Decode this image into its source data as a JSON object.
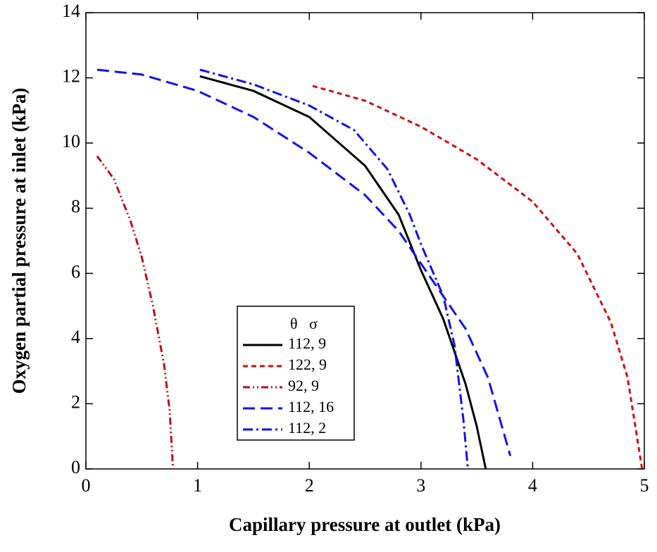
{
  "chart_data": {
    "type": "line",
    "xlabel": "Capillary pressure at outlet (kPa)",
    "ylabel": "Oxygen partial pressure at inlet (kPa)",
    "legend_title": "θ   σ",
    "xlim": [
      0,
      5
    ],
    "xticks": [
      0,
      1,
      2,
      3,
      4,
      5
    ],
    "ylim": [
      0,
      14
    ],
    "yticks": [
      0,
      2,
      4,
      6,
      8,
      10,
      12,
      14
    ],
    "legend": "lower center",
    "series": [
      {
        "name": "112, 9",
        "color": "#000000",
        "style": "solid",
        "x": [
          1.02,
          1.5,
          2.0,
          2.5,
          2.8,
          3.0,
          3.2,
          3.4,
          3.5,
          3.58
        ],
        "values": [
          12.05,
          11.6,
          10.8,
          9.3,
          7.8,
          6.1,
          4.6,
          2.6,
          1.3,
          0
        ]
      },
      {
        "name": "122, 9",
        "color": "#cc1111",
        "style": "dashed",
        "x": [
          2.03,
          2.5,
          3.0,
          3.5,
          4.0,
          4.4,
          4.7,
          4.85,
          4.98
        ],
        "values": [
          11.75,
          11.3,
          10.5,
          9.5,
          8.2,
          6.6,
          4.5,
          2.8,
          0
        ]
      },
      {
        "name": "92, 9",
        "color": "#bb1111",
        "style": "dashdotdot",
        "x": [
          0.1,
          0.25,
          0.4,
          0.5,
          0.6,
          0.7,
          0.75,
          0.78
        ],
        "values": [
          9.6,
          8.9,
          7.6,
          6.5,
          5.0,
          3.2,
          1.8,
          0
        ]
      },
      {
        "name": "112, 16",
        "color": "#1111ee",
        "style": "longdash",
        "x": [
          0.1,
          0.5,
          1.0,
          1.5,
          2.0,
          2.5,
          2.8,
          3.0,
          3.2,
          3.4,
          3.6,
          3.8
        ],
        "values": [
          12.25,
          12.1,
          11.6,
          10.8,
          9.7,
          8.4,
          7.3,
          6.3,
          5.3,
          4.3,
          2.8,
          0.4
        ]
      },
      {
        "name": "112, 2",
        "color": "#1111ee",
        "style": "dashdot",
        "x": [
          1.02,
          1.5,
          2.0,
          2.4,
          2.7,
          2.9,
          3.0,
          3.2,
          3.3,
          3.38,
          3.42
        ],
        "values": [
          12.25,
          11.8,
          11.15,
          10.4,
          9.2,
          7.8,
          6.9,
          5.3,
          3.8,
          1.5,
          0
        ]
      }
    ]
  }
}
